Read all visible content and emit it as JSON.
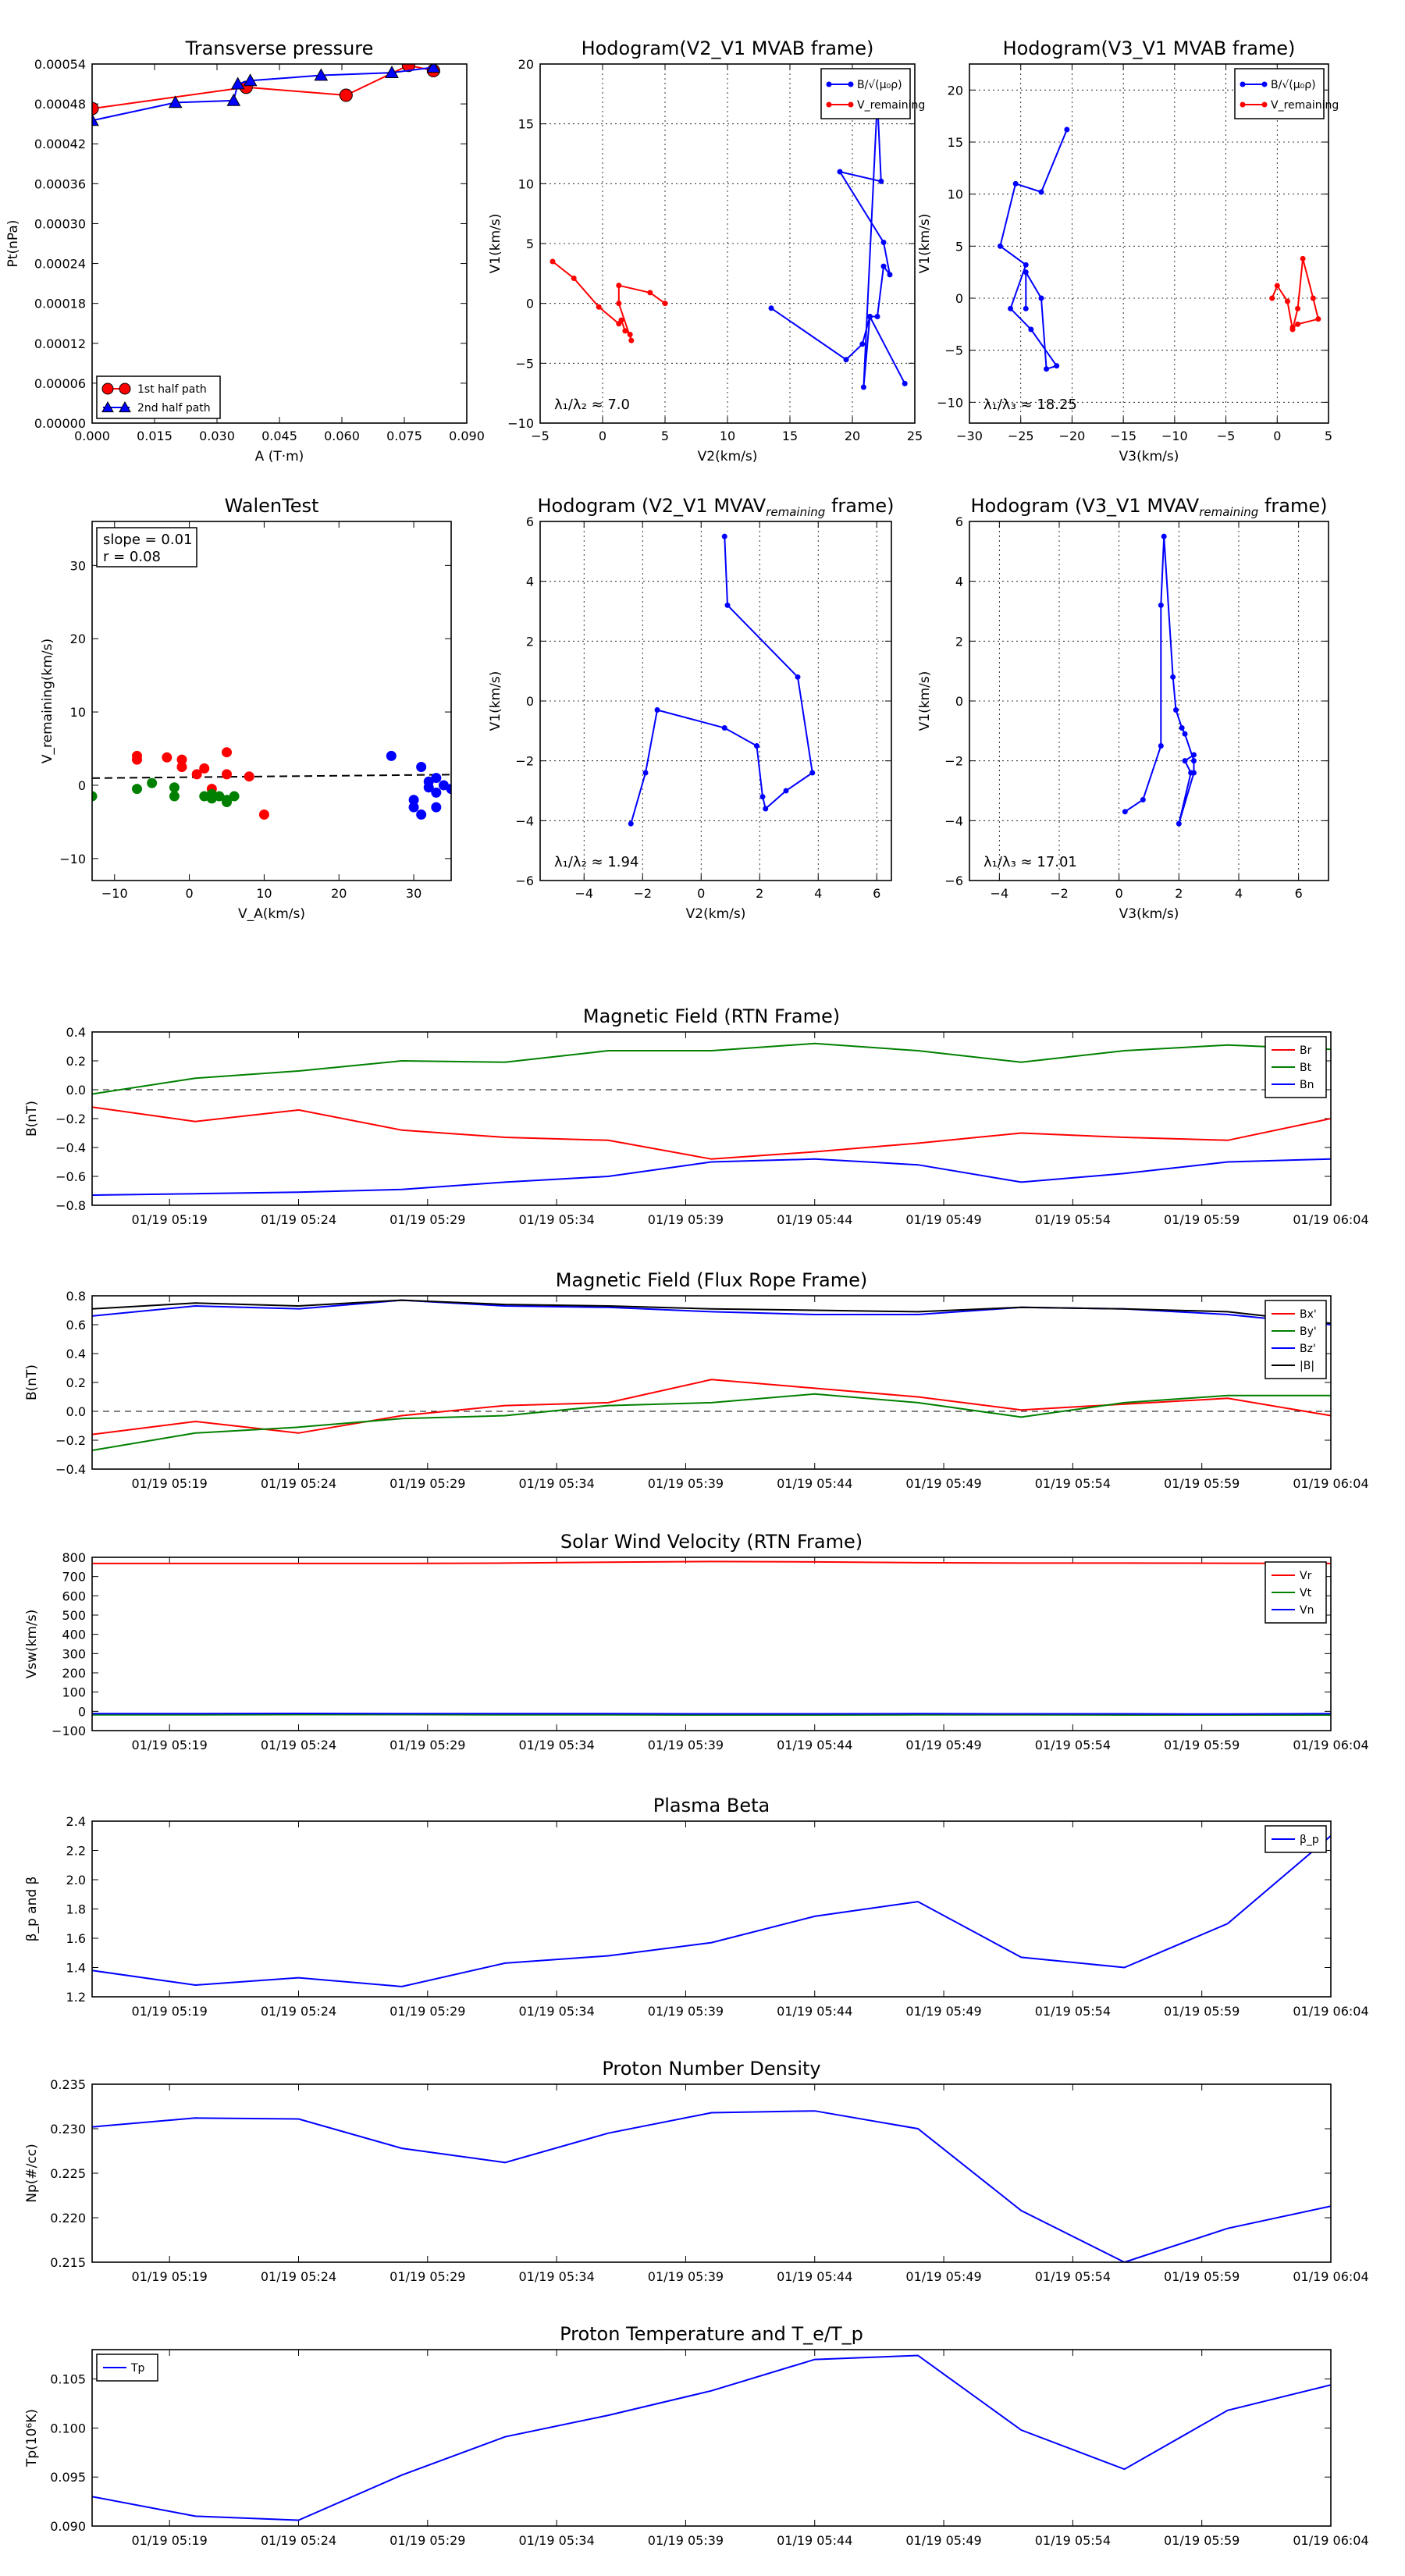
{
  "colors": {
    "red": "#ff0000",
    "green": "#008000",
    "blue": "#0000ff",
    "black": "#000000"
  },
  "chart_data": [
    {
      "id": "pt",
      "type": "line",
      "title": "Transverse pressure",
      "xlabel": "A (T·m)",
      "ylabel": "Pt(nPa)",
      "xlim": [
        0,
        0.09
      ],
      "ylim": [
        0,
        0.00054
      ],
      "xticks": [
        "0.000",
        "0.015",
        "0.030",
        "0.045",
        "0.060",
        "0.075",
        "0.090"
      ],
      "yticks": [
        "0.00000",
        "0.00006",
        "0.00012",
        "0.00018",
        "0.00024",
        "0.00030",
        "0.00036",
        "0.00042",
        "0.00048",
        "0.00054"
      ],
      "series": [
        {
          "name": "1st half path",
          "color": "#ff0000",
          "marker": "circle",
          "x": [
            0.0,
            0.037,
            0.061,
            0.076,
            0.082
          ],
          "y": [
            0.000473,
            0.000505,
            0.000493,
            0.000538,
            0.00053
          ]
        },
        {
          "name": "2nd half path",
          "color": "#0000ff",
          "marker": "triangle",
          "x": [
            0.0,
            0.02,
            0.034,
            0.035,
            0.038,
            0.055,
            0.072,
            0.082
          ],
          "y": [
            0.000455,
            0.000482,
            0.000485,
            0.00051,
            0.000515,
            0.000523,
            0.000527,
            0.000535
          ]
        }
      ],
      "legend_location": "lower-left"
    },
    {
      "id": "h1",
      "type": "line",
      "title": "Hodogram(V2_V1 MVAB frame)",
      "xlabel": "V2(km/s)",
      "ylabel": "V1(km/s)",
      "xlim": [
        -5,
        25
      ],
      "ylim": [
        -10,
        20
      ],
      "xticks": [
        "−5",
        "0",
        "5",
        "10",
        "15",
        "20",
        "25"
      ],
      "yticks": [
        "−10",
        "−5",
        "0",
        "5",
        "10",
        "15",
        "20"
      ],
      "grid": true,
      "legend_location": "upper-right",
      "annotation": "λ₁/λ₂ ≈ 7.0",
      "series": [
        {
          "name": "B/√(μ₀ρ)",
          "color": "#0000ff",
          "x": [
            13.5,
            19.5,
            20.8,
            21.4,
            22.0,
            22.5,
            23.0,
            22.5,
            19.0,
            22.3,
            22.0,
            20.9,
            21.4,
            24.2
          ],
          "y": [
            -0.4,
            -4.7,
            -3.4,
            -1.1,
            -1.1,
            3.1,
            2.4,
            5.1,
            11.0,
            10.2,
            17.0,
            -7.0,
            -1.1,
            -6.7
          ]
        },
        {
          "name": "V_remaining",
          "color": "#ff0000",
          "x": [
            -4.0,
            -2.3,
            -0.3,
            1.3,
            1.5,
            1.8,
            2.2,
            2.3,
            1.3,
            1.3,
            3.8,
            5.0
          ],
          "y": [
            3.5,
            2.1,
            -0.3,
            -1.7,
            -1.4,
            -2.3,
            -2.6,
            -3.1,
            0.0,
            1.5,
            0.9,
            0.0
          ]
        }
      ]
    },
    {
      "id": "h2",
      "type": "line",
      "title": "Hodogram(V3_V1 MVAB frame)",
      "xlabel": "V3(km/s)",
      "ylabel": "V1(km/s)",
      "xlim": [
        -30,
        5
      ],
      "ylim": [
        -12,
        22.5
      ],
      "xticks": [
        "−30",
        "−25",
        "−20",
        "−15",
        "−10",
        "−5",
        "0",
        "5"
      ],
      "yticks": [
        "−10",
        "−5",
        "0",
        "5",
        "10",
        "15",
        "20"
      ],
      "grid": true,
      "legend_location": "upper-right",
      "annotation": "λ₁/λ₃ ≈ 18.25",
      "series": [
        {
          "name": "B/√(μ₀ρ)",
          "color": "#0000ff",
          "x": [
            -20.5,
            -23.0,
            -25.5,
            -27.0,
            -24.5,
            -26.0,
            -24.0,
            -21.5,
            -22.5,
            -23.0,
            -24.5,
            -24.5
          ],
          "y": [
            16.2,
            10.2,
            11.0,
            5.0,
            3.2,
            -1.0,
            -3.0,
            -6.5,
            -6.8,
            0.0,
            2.5,
            -1.0
          ]
        },
        {
          "name": "V_remaining",
          "color": "#ff0000",
          "x": [
            -0.5,
            0.0,
            1.0,
            1.5,
            2.0,
            2.5,
            3.5,
            4.0,
            2.0,
            1.5
          ],
          "y": [
            0.0,
            1.2,
            -0.3,
            -3.0,
            -1.0,
            3.8,
            0.0,
            -2.0,
            -2.5,
            -2.8
          ]
        }
      ]
    },
    {
      "id": "walen",
      "type": "scatter",
      "title": "WalenTest",
      "xlabel": "V_A(km/s)",
      "ylabel": "V_remaining(km/s)",
      "xlim": [
        -13,
        35
      ],
      "ylim": [
        -13,
        36
      ],
      "xticks": [
        "−10",
        "0",
        "10",
        "20",
        "30"
      ],
      "yticks": [
        "−10",
        "0",
        "10",
        "20",
        "30"
      ],
      "annotation_lines": [
        "slope = 0.01",
        "r = 0.08"
      ],
      "fit_line": {
        "slope": 0.01,
        "intercept": 1.1
      },
      "series": [
        {
          "color": "#ff0000",
          "x": [
            -7,
            -7,
            -3,
            -1,
            -1,
            1,
            2,
            3,
            5,
            5,
            8,
            10
          ],
          "y": [
            4,
            3.5,
            3.8,
            3.5,
            2.5,
            1.5,
            2.3,
            -0.5,
            1.5,
            4.5,
            1.2,
            -4
          ]
        },
        {
          "color": "#008000",
          "x": [
            -13,
            -7,
            -5,
            -2,
            -2,
            2,
            3,
            3,
            4,
            5,
            5,
            6
          ],
          "y": [
            -1.5,
            -0.5,
            0.3,
            -0.3,
            -1.5,
            -1.5,
            -1.8,
            -1.2,
            -1.5,
            -2.3,
            -2.0,
            -1.5
          ]
        },
        {
          "color": "#0000ff",
          "x": [
            27,
            30,
            30,
            31,
            31,
            32,
            32,
            33,
            33,
            33,
            34,
            35
          ],
          "y": [
            4,
            -2,
            -3,
            2.5,
            -4,
            0.5,
            -0.3,
            1,
            -1,
            -3,
            0,
            -0.5
          ]
        }
      ]
    },
    {
      "id": "h3",
      "type": "line",
      "title": "Hodogram (V2_V1 MVAV",
      "title_sub": "remaining",
      "title_end": " frame)",
      "xlabel": "V2(km/s)",
      "ylabel": "V1(km/s)",
      "xlim": [
        -5.5,
        6.5
      ],
      "ylim": [
        -6,
        6
      ],
      "xticks": [
        "−4",
        "−2",
        "0",
        "2",
        "4",
        "6"
      ],
      "yticks": [
        "−6",
        "−4",
        "−2",
        "0",
        "2",
        "4",
        "6"
      ],
      "grid": true,
      "annotation": "λ₁/λ₂ ≈ 1.94",
      "series": [
        {
          "color": "#0000ff",
          "x": [
            -2.4,
            -1.9,
            -1.5,
            0.8,
            1.9,
            2.1,
            2.2,
            2.9,
            3.8,
            3.3,
            0.9,
            0.8
          ],
          "y": [
            -4.1,
            -2.4,
            -0.3,
            -0.9,
            -1.5,
            -3.2,
            -3.6,
            -3.0,
            -2.4,
            0.8,
            3.2,
            5.5
          ]
        }
      ]
    },
    {
      "id": "h4",
      "type": "line",
      "title": "Hodogram (V3_V1 MVAV",
      "title_sub": "remaining",
      "title_end": " frame)",
      "xlabel": "V3(km/s)",
      "ylabel": "V1(km/s)",
      "xlim": [
        -5,
        7
      ],
      "ylim": [
        -6,
        6
      ],
      "xticks": [
        "−4",
        "−2",
        "0",
        "2",
        "4",
        "6"
      ],
      "yticks": [
        "−6",
        "−4",
        "−2",
        "0",
        "2",
        "4",
        "6"
      ],
      "grid": true,
      "annotation": "λ₁/λ₃ ≈ 17.01",
      "series": [
        {
          "color": "#0000ff",
          "x": [
            0.2,
            0.8,
            1.4,
            1.4,
            1.5,
            1.8,
            1.9,
            2.1,
            2.2,
            2.5,
            2.5,
            2.0,
            2.4,
            2.2,
            2.5
          ],
          "y": [
            -3.7,
            -3.3,
            -1.5,
            3.2,
            5.5,
            0.8,
            -0.3,
            -0.9,
            -1.1,
            -2.0,
            -2.4,
            -4.1,
            -2.4,
            -2.0,
            -1.8
          ]
        }
      ]
    },
    {
      "id": "bfield",
      "type": "line",
      "title": "Magnetic Field (RTN Frame)",
      "ylabel": "B(nT)",
      "ylim": [
        -0.8,
        0.4
      ],
      "yticks": [
        "−0.8",
        "−0.6",
        "−0.4",
        "−0.2",
        "0.0",
        "0.2",
        "0.4"
      ],
      "xticks": [
        "01/19 05:19",
        "01/19 05:24",
        "01/19 05:29",
        "01/19 05:34",
        "01/19 05:39",
        "01/19 05:44",
        "01/19 05:49",
        "01/19 05:54",
        "01/19 05:59",
        "01/19 06:04"
      ],
      "x": [
        "05:16",
        "05:20",
        "05:24",
        "05:28",
        "05:32",
        "05:36",
        "05:40",
        "05:44",
        "05:48",
        "05:52",
        "05:56",
        "06:00",
        "06:04"
      ],
      "zero_line": true,
      "legend_location": "upper-right",
      "series": [
        {
          "name": "Br",
          "color": "#ff0000",
          "values": [
            -0.12,
            -0.22,
            -0.14,
            -0.28,
            -0.33,
            -0.35,
            -0.48,
            -0.43,
            -0.37,
            -0.3,
            -0.33,
            -0.35,
            -0.2
          ]
        },
        {
          "name": "Bt",
          "color": "#008000",
          "values": [
            -0.03,
            0.08,
            0.13,
            0.2,
            0.19,
            0.27,
            0.27,
            0.32,
            0.27,
            0.19,
            0.27,
            0.31,
            0.28
          ]
        },
        {
          "name": "Bn",
          "color": "#0000ff",
          "values": [
            -0.73,
            -0.72,
            -0.71,
            -0.69,
            -0.64,
            -0.6,
            -0.5,
            -0.48,
            -0.52,
            -0.64,
            -0.58,
            -0.5,
            -0.48
          ]
        }
      ]
    },
    {
      "id": "fluxrope",
      "type": "line",
      "title": "Magnetic Field (Flux Rope Frame)",
      "ylabel": "B(nT)",
      "ylim": [
        -0.4,
        0.8
      ],
      "yticks": [
        "−0.4",
        "−0.2",
        "0.0",
        "0.2",
        "0.4",
        "0.6",
        "0.8"
      ],
      "xticks": [
        "01/19 05:19",
        "01/19 05:24",
        "01/19 05:29",
        "01/19 05:34",
        "01/19 05:39",
        "01/19 05:44",
        "01/19 05:49",
        "01/19 05:54",
        "01/19 05:59",
        "01/19 06:04"
      ],
      "x": [
        "05:16",
        "05:20",
        "05:24",
        "05:28",
        "05:32",
        "05:36",
        "05:40",
        "05:44",
        "05:48",
        "05:52",
        "05:56",
        "06:00",
        "06:04"
      ],
      "zero_line": true,
      "legend_location": "upper-right",
      "series": [
        {
          "name": "Bx'",
          "color": "#ff0000",
          "values": [
            -0.16,
            -0.07,
            -0.15,
            -0.03,
            0.04,
            0.06,
            0.22,
            0.16,
            0.1,
            0.01,
            0.05,
            0.09,
            -0.03
          ]
        },
        {
          "name": "By'",
          "color": "#008000",
          "values": [
            -0.27,
            -0.15,
            -0.11,
            -0.05,
            -0.03,
            0.04,
            0.06,
            0.12,
            0.06,
            -0.04,
            0.06,
            0.11,
            0.11
          ]
        },
        {
          "name": "Bz'",
          "color": "#0000ff",
          "values": [
            0.66,
            0.73,
            0.71,
            0.77,
            0.73,
            0.72,
            0.69,
            0.67,
            0.67,
            0.72,
            0.71,
            0.67,
            0.6
          ]
        },
        {
          "name": "|B|",
          "color": "#000000",
          "values": [
            0.71,
            0.75,
            0.73,
            0.77,
            0.74,
            0.73,
            0.71,
            0.7,
            0.69,
            0.72,
            0.71,
            0.69,
            0.61
          ]
        }
      ]
    },
    {
      "id": "vsw",
      "type": "line",
      "title": "Solar Wind Velocity (RTN Frame)",
      "ylabel": "Vsw(km/s)",
      "ylim": [
        -100,
        800
      ],
      "yticks": [
        "−100",
        "0",
        "100",
        "200",
        "300",
        "400",
        "500",
        "600",
        "700",
        "800"
      ],
      "xticks": [
        "01/19 05:19",
        "01/19 05:24",
        "01/19 05:29",
        "01/19 05:34",
        "01/19 05:39",
        "01/19 05:44",
        "01/19 05:49",
        "01/19 05:54",
        "01/19 05:59",
        "01/19 06:04"
      ],
      "x": [
        "05:16",
        "05:20",
        "05:24",
        "05:28",
        "05:32",
        "05:36",
        "05:40",
        "05:44",
        "05:48",
        "05:52",
        "05:56",
        "06:00",
        "06:04"
      ],
      "legend_location": "upper-right",
      "series": [
        {
          "name": "Vr",
          "color": "#ff0000",
          "values": [
            768,
            768,
            768,
            768,
            770,
            775,
            778,
            776,
            772,
            770,
            770,
            769,
            768
          ]
        },
        {
          "name": "Vt",
          "color": "#008000",
          "values": [
            -18,
            -18,
            -17,
            -17,
            -18,
            -18,
            -19,
            -19,
            -18,
            -18,
            -19,
            -19,
            -19
          ]
        },
        {
          "name": "Vn",
          "color": "#0000ff",
          "values": [
            -12,
            -12,
            -11,
            -12,
            -12,
            -12,
            -13,
            -13,
            -12,
            -13,
            -13,
            -14,
            -12
          ]
        }
      ]
    },
    {
      "id": "beta",
      "type": "line",
      "title": "Plasma Beta",
      "ylabel": "β_p and β",
      "ylim": [
        1.2,
        2.4
      ],
      "yticks": [
        "1.2",
        "1.4",
        "1.6",
        "1.8",
        "2.0",
        "2.2",
        "2.4"
      ],
      "xticks": [
        "01/19 05:19",
        "01/19 05:24",
        "01/19 05:29",
        "01/19 05:34",
        "01/19 05:39",
        "01/19 05:44",
        "01/19 05:49",
        "01/19 05:54",
        "01/19 05:59",
        "01/19 06:04"
      ],
      "x": [
        "05:16",
        "05:20",
        "05:24",
        "05:28",
        "05:32",
        "05:36",
        "05:40",
        "05:44",
        "05:48",
        "05:52",
        "05:56",
        "06:00",
        "06:04"
      ],
      "legend_location": "upper-right",
      "series": [
        {
          "name": "β_p",
          "color": "#0000ff",
          "values": [
            1.38,
            1.28,
            1.33,
            1.27,
            1.43,
            1.48,
            1.57,
            1.75,
            1.85,
            1.47,
            1.4,
            1.7,
            2.3
          ]
        }
      ]
    },
    {
      "id": "np",
      "type": "line",
      "title": "Proton Number Density",
      "ylabel": "Np(#/cc)",
      "ylim": [
        0.215,
        0.235
      ],
      "yticks": [
        "0.215",
        "0.220",
        "0.225",
        "0.230",
        "0.235"
      ],
      "xticks": [
        "01/19 05:19",
        "01/19 05:24",
        "01/19 05:29",
        "01/19 05:34",
        "01/19 05:39",
        "01/19 05:44",
        "01/19 05:49",
        "01/19 05:54",
        "01/19 05:59",
        "01/19 06:04"
      ],
      "x": [
        "05:16",
        "05:20",
        "05:24",
        "05:28",
        "05:32",
        "05:36",
        "05:40",
        "05:44",
        "05:48",
        "05:52",
        "05:56",
        "06:00",
        "06:04"
      ],
      "series": [
        {
          "color": "#0000ff",
          "values": [
            0.2302,
            0.2312,
            0.2311,
            0.2278,
            0.2262,
            0.2295,
            0.2318,
            0.232,
            0.23,
            0.2208,
            0.215,
            0.2188,
            0.2213
          ]
        }
      ]
    },
    {
      "id": "tp",
      "type": "line",
      "title": "Proton Temperature and T_e/T_p",
      "ylabel": "Tp(10⁶K)",
      "ylim": [
        0.09,
        0.108
      ],
      "yticks": [
        "0.090",
        "0.095",
        "0.100",
        "0.105"
      ],
      "xticks": [
        "01/19 05:19",
        "01/19 05:24",
        "01/19 05:29",
        "01/19 05:34",
        "01/19 05:39",
        "01/19 05:44",
        "01/19 05:49",
        "01/19 05:54",
        "01/19 05:59",
        "01/19 06:04"
      ],
      "x": [
        "05:16",
        "05:20",
        "05:24",
        "05:28",
        "05:32",
        "05:36",
        "05:40",
        "05:44",
        "05:48",
        "05:52",
        "05:56",
        "06:00",
        "06:04"
      ],
      "legend_location": "upper-left",
      "series": [
        {
          "name": "Tp",
          "color": "#0000ff",
          "values": [
            0.093,
            0.091,
            0.0906,
            0.0952,
            0.0991,
            0.1013,
            0.1038,
            0.107,
            0.1074,
            0.0998,
            0.0958,
            0.1018,
            0.1044
          ]
        }
      ]
    }
  ]
}
